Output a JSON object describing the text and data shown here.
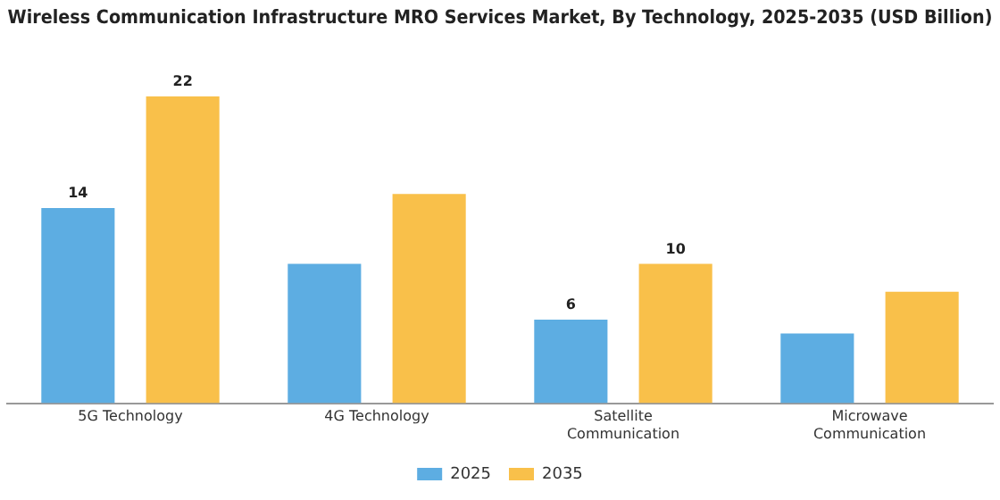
{
  "chart_data": {
    "type": "bar",
    "title": "Wireless Communication Infrastructure MRO Services Market, By Technology, 2025-2035 (USD Billion)",
    "categories": [
      "5G Technology",
      "4G Technology",
      "Satellite\nCommunication",
      "Microwave\nCommunication"
    ],
    "series": [
      {
        "name": "2025",
        "color": "#5dade2",
        "values": [
          14,
          10,
          6,
          5
        ],
        "value_labels": [
          "14",
          null,
          "6",
          null
        ]
      },
      {
        "name": "2035",
        "color": "#f9c04a",
        "values": [
          22,
          15,
          10,
          8
        ],
        "value_labels": [
          "22",
          null,
          "10",
          null
        ]
      }
    ],
    "legend": "bottom",
    "grid": false
  }
}
